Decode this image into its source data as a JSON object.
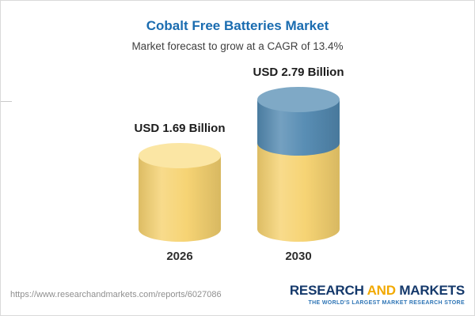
{
  "chart_data": {
    "type": "bar",
    "variant": "3d-cylinder",
    "title": "Cobalt Free Batteries Market",
    "subtitle": "Market forecast to grow at a CAGR of 13.4%",
    "categories": [
      "2026",
      "2030"
    ],
    "values": [
      1.69,
      2.79
    ],
    "value_labels": [
      "USD 1.69 Billion",
      "USD 2.79 Billion"
    ],
    "unit": "USD Billion",
    "cagr_pct": 13.4,
    "ylim": [
      0,
      3
    ],
    "legend": "none",
    "grid": "off",
    "colors": {
      "title": "#1A6CB0",
      "text": "#3F3F3F",
      "base": "#F6D26F",
      "base_top": "#FBE6A4",
      "growth": "#5289B1",
      "growth_top": "#7FA9C6"
    }
  },
  "footer": {
    "url": "https://www.researchandmarkets.com/reports/6027086",
    "logo": {
      "word1": "RESEARCH",
      "word2": "AND",
      "word3": "MARKETS",
      "tagline": "THE WORLD'S LARGEST MARKET RESEARCH STORE",
      "navy": "#15396B",
      "gold": "#F2A900",
      "tagline_blue": "#2E75B6"
    }
  }
}
